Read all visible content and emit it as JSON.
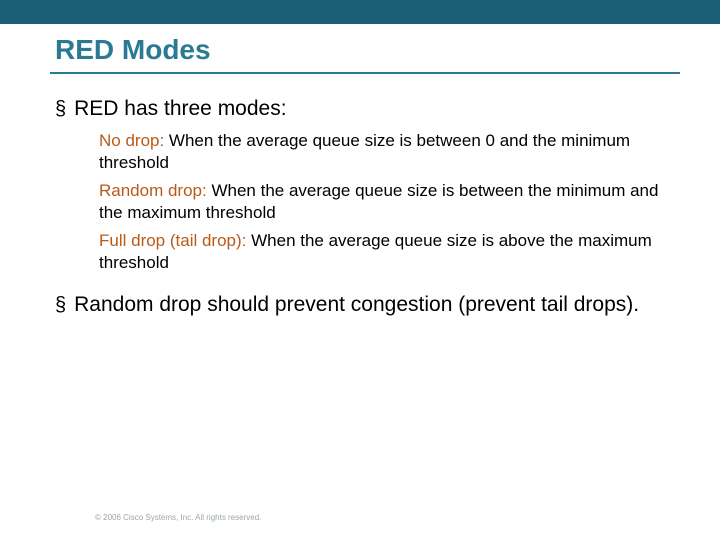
{
  "colors": {
    "topbar_bg": "#1a5f73",
    "title_color": "#2a7a94",
    "title_border": "#2a7a94",
    "term_color": "#b85a1a",
    "body_text": "#000000",
    "footer_color": "#9aa7ad",
    "page_bg": "#ffffff"
  },
  "typography": {
    "title_fontsize": 28,
    "bullet_fontsize": 21,
    "subitem_fontsize": 17,
    "footer_fontsize": 8,
    "font_family": "Arial"
  },
  "title": "RED Modes",
  "bullets": [
    {
      "text": "RED has three modes:",
      "subitems": [
        {
          "term": "No drop:",
          "desc": " When the average queue size is between 0 and the minimum threshold"
        },
        {
          "term": "Random drop:",
          "desc": " When the average queue size is between the minimum and the maximum threshold"
        },
        {
          "term": "Full drop (tail drop):",
          "desc": " When the average queue size is above the maximum threshold"
        }
      ]
    },
    {
      "text": "Random drop should prevent congestion (prevent tail drops).",
      "subitems": []
    }
  ],
  "footer": "© 2006 Cisco Systems, Inc. All rights reserved."
}
